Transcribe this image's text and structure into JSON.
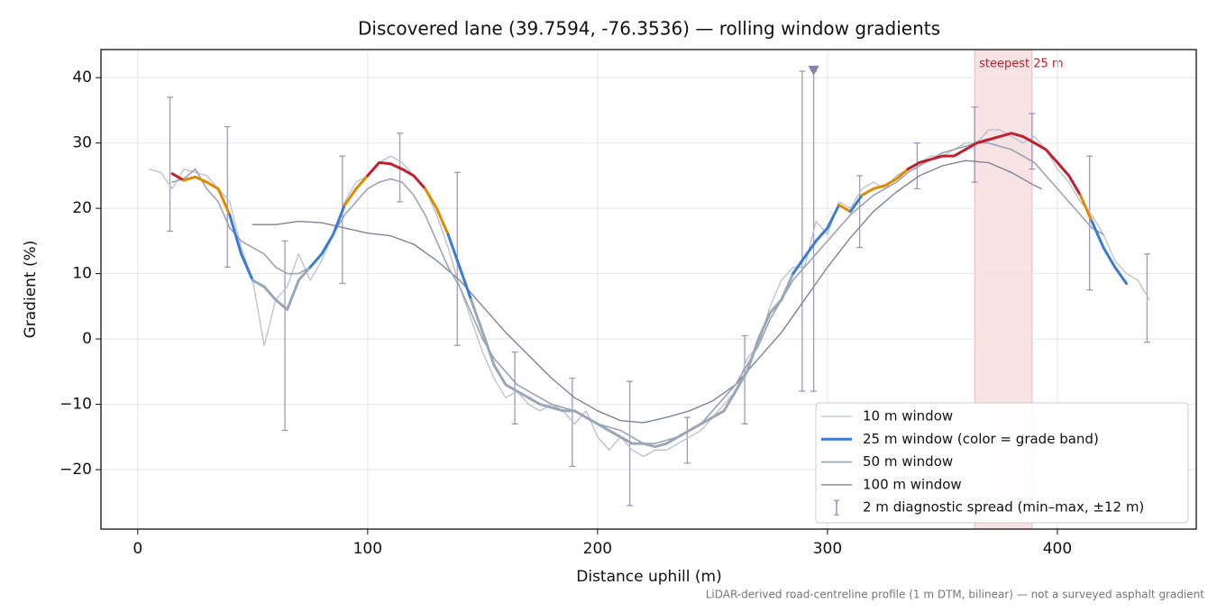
{
  "chart_data": {
    "type": "line",
    "title": "Discovered lane (39.7594, -76.3536) — rolling window gradients",
    "xlabel": "Distance uphill (m)",
    "ylabel": "Gradient (%)",
    "footnote": "LiDAR-derived road-centreline profile (1 m DTM, bilinear) — not a surveyed asphalt gradient",
    "xlim": [
      -16,
      460.4
    ],
    "ylim": [
      -29.1,
      44.3
    ],
    "xticks": [
      0,
      100,
      200,
      300,
      400
    ],
    "yticks": [
      {
        "value": -20,
        "label": "−20"
      },
      {
        "value": -10,
        "label": "−10"
      },
      0,
      10,
      20,
      30,
      40
    ],
    "grid": true,
    "legend": "lower right",
    "highlight": {
      "label": "steepest 25 m",
      "span": [
        364,
        389
      ],
      "color": "#c0202e"
    },
    "markers": [
      {
        "x": 294,
        "y": 41,
        "color": "#8a7fae"
      }
    ],
    "series": [
      {
        "name": "10 m window",
        "color": "#b9c0cc",
        "width": 1.3,
        "x": [
          5,
          10,
          15,
          20,
          25,
          30,
          35,
          40,
          45,
          50,
          55,
          60,
          65,
          70,
          75,
          80,
          85,
          90,
          95,
          100,
          105,
          110,
          115,
          120,
          125,
          130,
          135,
          140,
          145,
          150,
          155,
          160,
          165,
          170,
          175,
          180,
          185,
          190,
          195,
          200,
          205,
          210,
          215,
          220,
          225,
          230,
          235,
          240,
          245,
          250,
          255,
          260,
          265,
          270,
          275,
          280,
          285,
          290,
          295,
          300,
          305,
          310,
          315,
          320,
          325,
          330,
          335,
          340,
          345,
          350,
          355,
          360,
          365,
          370,
          375,
          380,
          385,
          390,
          395,
          400,
          405,
          410,
          415,
          420,
          425,
          430,
          435,
          440
        ],
        "values": [
          26,
          25.5,
          23,
          26,
          25.5,
          25,
          23,
          21,
          14,
          9,
          -1,
          6,
          8,
          13,
          9,
          12,
          16,
          21,
          24,
          25,
          27,
          28,
          27,
          25,
          23,
          19,
          14,
          8,
          3,
          -2,
          -6,
          -9,
          -8,
          -10,
          -11,
          -10,
          -11,
          -13,
          -11,
          -15,
          -17,
          -15,
          -17,
          -18,
          -17,
          -17,
          -16,
          -15,
          -14,
          -12,
          -10,
          -8,
          -3,
          -1,
          5,
          9,
          11,
          11,
          18,
          16,
          21,
          20,
          23,
          24,
          23,
          25,
          26,
          27,
          28,
          28,
          29,
          30,
          30,
          32,
          32,
          31,
          30,
          31,
          29,
          26,
          24,
          21,
          19,
          16,
          12,
          10,
          9,
          6
        ]
      },
      {
        "name": "25 m window (color = grade band)",
        "color": "#3a7bd5",
        "width": 3,
        "grade_bands": [
          {
            "from": 25,
            "color": "#c0202e"
          },
          {
            "from": 20,
            "color": "#e08a00"
          },
          {
            "from": 10,
            "color": "#3a7bd5"
          },
          {
            "from": -30,
            "color": "#9aa7b8"
          }
        ],
        "x": [
          15,
          20,
          25,
          30,
          35,
          40,
          45,
          50,
          55,
          60,
          65,
          70,
          75,
          80,
          85,
          90,
          95,
          100,
          105,
          110,
          115,
          120,
          125,
          130,
          135,
          140,
          145,
          150,
          155,
          160,
          165,
          170,
          175,
          180,
          185,
          190,
          195,
          200,
          205,
          210,
          215,
          220,
          225,
          230,
          235,
          240,
          245,
          250,
          255,
          260,
          265,
          270,
          275,
          280,
          285,
          290,
          295,
          300,
          305,
          310,
          315,
          320,
          325,
          330,
          335,
          340,
          345,
          350,
          355,
          360,
          365,
          370,
          375,
          380,
          385,
          390,
          395,
          400,
          405,
          410,
          415,
          420,
          425,
          430
        ],
        "values": [
          25.3,
          24.3,
          24.8,
          24,
          23,
          19,
          13,
          9,
          8,
          6,
          4.5,
          9,
          11,
          13,
          16,
          20.5,
          23,
          25,
          27,
          26.8,
          26,
          25,
          23,
          20,
          16,
          11,
          6,
          1,
          -4,
          -7,
          -8,
          -9,
          -10,
          -10.5,
          -11,
          -11,
          -12,
          -13,
          -14,
          -15,
          -16,
          -16,
          -16.5,
          -16,
          -15,
          -14,
          -13,
          -12,
          -11,
          -8,
          -5,
          0,
          4,
          6,
          10,
          12.5,
          15,
          17,
          20.5,
          19.5,
          22,
          23,
          23.5,
          24.5,
          26,
          27,
          27.5,
          28,
          28,
          29,
          30,
          30.5,
          31,
          31.5,
          31,
          30,
          29,
          27,
          25,
          22,
          18,
          14,
          11,
          8.5
        ]
      },
      {
        "name": "50 m window",
        "color": "#9aa3b5",
        "width": 1.6,
        "x": [
          15,
          20,
          25,
          30,
          35,
          40,
          45,
          50,
          55,
          60,
          65,
          70,
          75,
          80,
          85,
          90,
          95,
          100,
          105,
          110,
          115,
          120,
          125,
          130,
          135,
          140,
          145,
          150,
          155,
          160,
          165,
          170,
          175,
          180,
          185,
          190,
          195,
          200,
          205,
          210,
          215,
          220,
          225,
          230,
          235,
          240,
          245,
          250,
          255,
          260,
          265,
          270,
          275,
          280,
          285,
          290,
          295,
          300,
          305,
          310,
          315,
          320,
          325,
          330,
          335,
          340,
          345,
          350,
          355,
          360,
          365,
          370,
          375,
          380,
          385,
          390,
          395,
          400,
          405,
          410,
          415,
          420
        ],
        "values": [
          24,
          24.5,
          26,
          23,
          21,
          17,
          15,
          14,
          13,
          11,
          10,
          10,
          11,
          13,
          16,
          19,
          21,
          23,
          24,
          24.5,
          24,
          22,
          19,
          15,
          11,
          8,
          4,
          0,
          -3,
          -5,
          -7,
          -8,
          -9,
          -10,
          -10.5,
          -11,
          -12,
          -13,
          -13.5,
          -14,
          -15,
          -16,
          -16,
          -15.5,
          -15,
          -14,
          -13,
          -11,
          -9,
          -7,
          -4,
          -1,
          3,
          6,
          9,
          11,
          13,
          15,
          17,
          19,
          20.5,
          22,
          23,
          24,
          25.5,
          26.5,
          27.5,
          28.5,
          29,
          29.5,
          30,
          30,
          29.5,
          29,
          28,
          27,
          25,
          23,
          21,
          19,
          17,
          16
        ]
      },
      {
        "name": "100 m window",
        "color": "#7c8596",
        "width": 1.4,
        "x": [
          50,
          60,
          70,
          80,
          90,
          100,
          110,
          120,
          130,
          140,
          150,
          160,
          170,
          180,
          190,
          200,
          210,
          220,
          230,
          240,
          250,
          260,
          270,
          280,
          290,
          300,
          310,
          320,
          330,
          340,
          350,
          360,
          370,
          380,
          390,
          393
        ],
        "values": [
          17.5,
          17.5,
          18,
          17.8,
          17,
          16.2,
          15.8,
          14.5,
          12,
          9,
          5,
          1,
          -2.5,
          -6,
          -9,
          -11,
          -12.5,
          -12.8,
          -12,
          -11,
          -9.5,
          -7,
          -3,
          1,
          6,
          11,
          15.5,
          19.5,
          22.5,
          25,
          26.5,
          27.3,
          27,
          25.5,
          23.5,
          23
        ]
      }
    ],
    "error_bars": {
      "name": "2 m diagnostic spread (min–max, ±12 m)",
      "color": "#8a7fae",
      "x": [
        14,
        39,
        64,
        89,
        114,
        139,
        164,
        189,
        214,
        239,
        264,
        289,
        294,
        314,
        339,
        364,
        389,
        414,
        439
      ],
      "low": [
        16.5,
        11,
        -14,
        8.5,
        21,
        -1,
        -13,
        -19.5,
        -25.5,
        -19,
        -13,
        -8,
        -8,
        14,
        23,
        24,
        26,
        7.5,
        -0.5
      ],
      "high": [
        37,
        32.5,
        15,
        28,
        31.5,
        25.5,
        -2,
        -6,
        -6.5,
        -12,
        0.5,
        41,
        41,
        25,
        30,
        35.5,
        34.5,
        28,
        13
      ]
    }
  }
}
